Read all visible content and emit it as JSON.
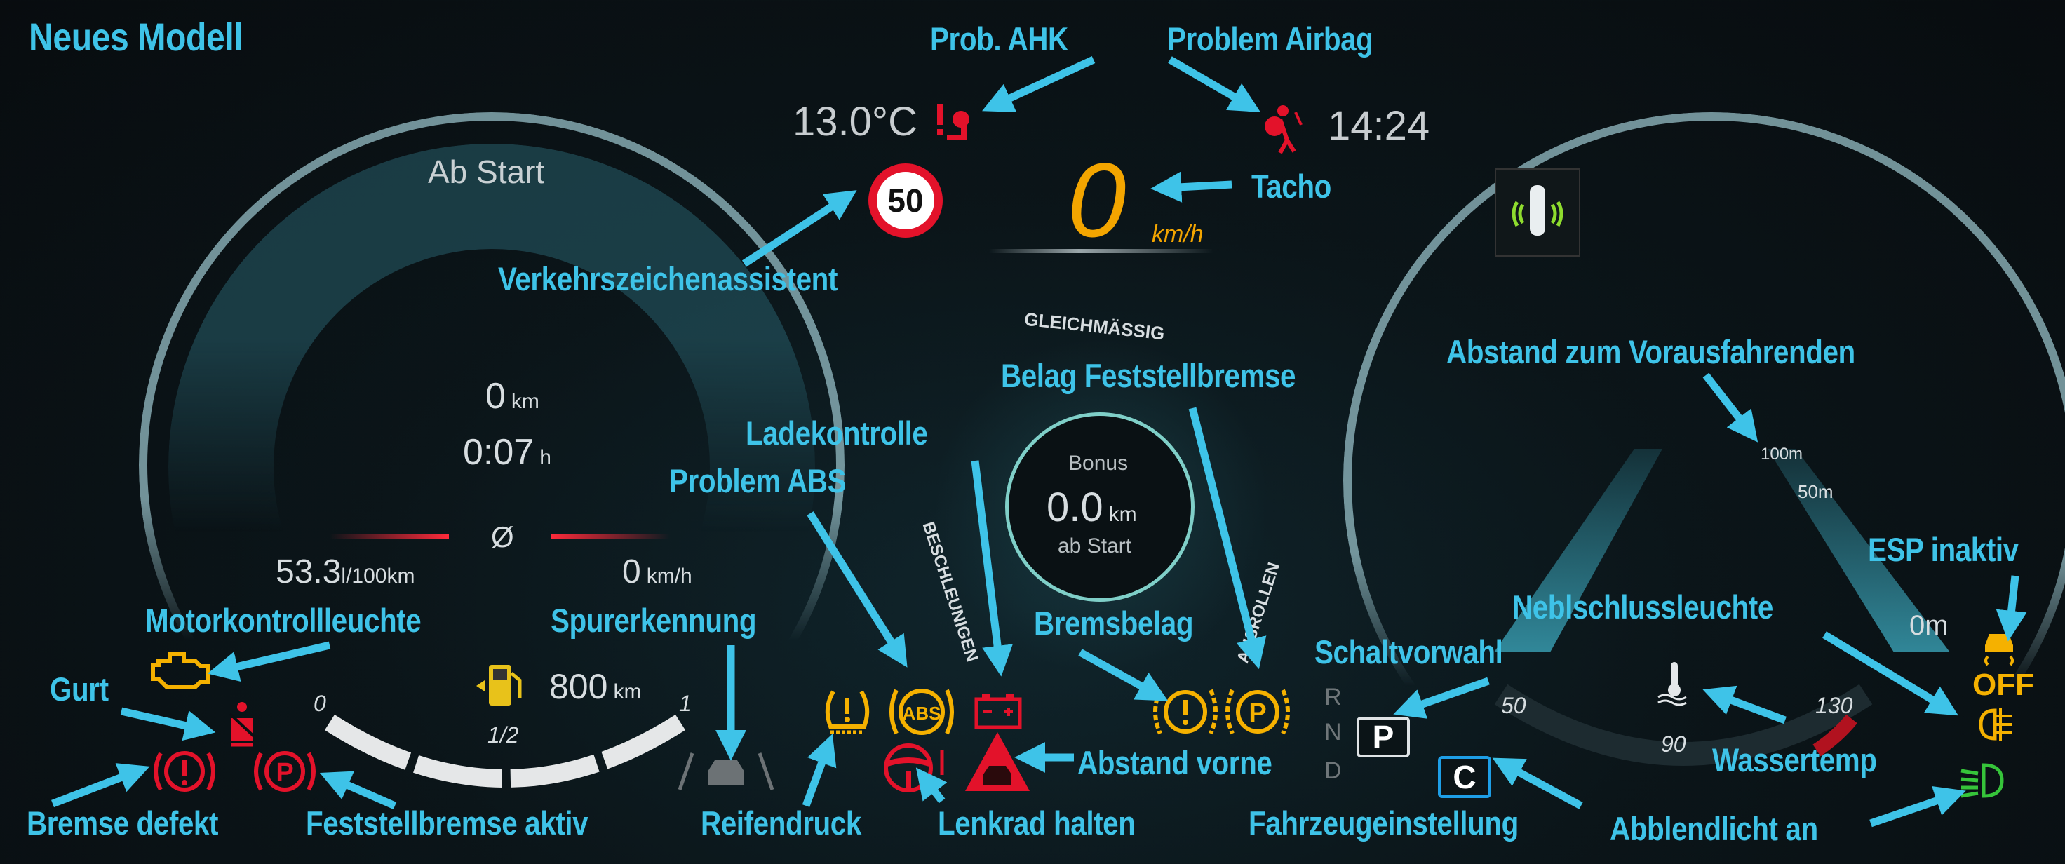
{
  "title": "Neues Modell",
  "colors": {
    "label": "#3ec3e8",
    "red": "#e3122a",
    "amber": "#f5b100",
    "green": "#36c43a",
    "speed": "#f3a500",
    "blue": "#1e9ee6"
  },
  "labels": {
    "prob_ahk": "Prob. AHK",
    "problem_airbag": "Problem Airbag",
    "tacho": "Tacho",
    "verkehrszeichen": "Verkehrszeichenassistent",
    "abstand_vorausfahrenden": "Abstand zum Vorausfahrenden",
    "belag_feststellbremse": "Belag Feststellbremse",
    "ladekontrolle": "Ladekontrolle",
    "problem_abs": "Problem ABS",
    "motorkontroll": "Motorkontrollleuchte",
    "spurerkennung": "Spurerkennung",
    "bremsbelag": "Bremsbelag",
    "nebelschluss": "Neblschlussleuchte",
    "esp_inaktiv": "ESP inaktiv",
    "schaltvorwahl": "Schaltvorwahl",
    "gurt": "Gurt",
    "abstand_vorne": "Abstand vorne",
    "wassertemp": "Wassertemp",
    "bremse_defekt": "Bremse defekt",
    "feststellbremse_aktiv": "Feststellbremse aktiv",
    "reifendruck": "Reifendruck",
    "lenkrad_halten": "Lenkrad halten",
    "fahrzeugeinstellung": "Fahrzeugeinstellung",
    "abblendlicht": "Abblendlicht an"
  },
  "left_gauge": {
    "header": "Ab Start",
    "distance": "0",
    "distance_unit": "km",
    "time": "0:07",
    "time_unit": "h",
    "avg_symbol": "Ø",
    "consumption": "53.3",
    "consumption_unit": "l/100km",
    "avg_speed": "0",
    "avg_speed_unit": "km/h",
    "range": "800",
    "range_unit": "km",
    "fuel_ticks": [
      "0",
      "1/2",
      "1"
    ]
  },
  "center": {
    "outside_temp": "13.0°C",
    "speed_limit": "50",
    "clock": "14:24",
    "speed": "0",
    "speed_unit": "km/h",
    "eco_top": "GLEICHMÄSSIG",
    "eco_left": "BESCHLEUNIGEN",
    "eco_right": "AUSROLLEN",
    "bonus_label": "Bonus",
    "bonus_value": "0.0",
    "bonus_unit": "km",
    "bonus_sub": "ab Start"
  },
  "right_gauge": {
    "distance_marks": [
      "100m",
      "50m",
      "0m"
    ],
    "temp_ticks": [
      "50",
      "90",
      "130"
    ],
    "gears": [
      "R",
      "N",
      "D"
    ],
    "gear_selected": "P",
    "drive_mode": "C",
    "esp_off_text": "OFF"
  },
  "warning_icons": [
    "trailer-hitch-icon",
    "airbag-icon",
    "engine-icon",
    "seatbelt-icon",
    "brake-warning-icon",
    "parking-brake-icon",
    "lane-assist-icon",
    "tire-pressure-icon",
    "abs-icon",
    "battery-icon",
    "steering-wheel-icon",
    "distance-warning-icon",
    "brake-pad-icon",
    "parking-brake-pad-icon",
    "esp-off-icon",
    "rear-fog-icon",
    "low-beam-icon",
    "coolant-temp-icon",
    "parking-sensor-icon"
  ],
  "abs_text": "ABS",
  "p_text": "P"
}
